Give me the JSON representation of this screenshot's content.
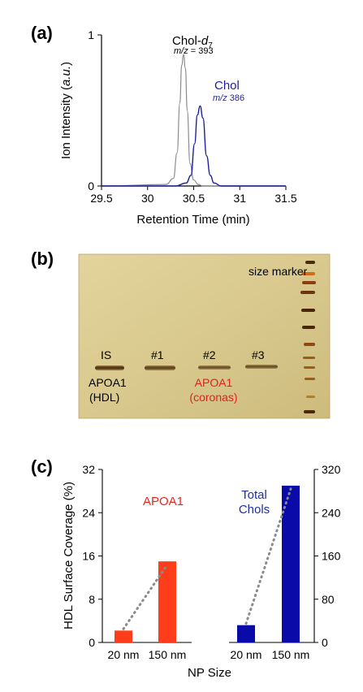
{
  "panels": {
    "a": "(a)",
    "b": "(b)",
    "c": "(c)"
  },
  "chart_data": [
    {
      "type": "line",
      "panel": "(a)",
      "xlabel": "Retention Time (min)",
      "ylabel_main": "Ion Intensity (",
      "ylabel_unit": "a.u.",
      "ylabel_close": ")",
      "x_ticks": [
        "29.5",
        "30",
        "30.5",
        "31",
        "31.5"
      ],
      "x_tick_values": [
        29.5,
        30.0,
        30.5,
        31.0,
        31.5
      ],
      "y_ticks": [
        "0",
        "1"
      ],
      "y_tick_values": [
        0,
        1
      ],
      "xlim": [
        29.5,
        31.5
      ],
      "ylim": [
        0,
        1
      ],
      "series": [
        {
          "name": "Chol-d7",
          "label_main": "Chol-",
          "label_italic": "d",
          "label_sub": "7",
          "mz_label": "m/z",
          "mz_value": " = 393",
          "color": "#8c8c8c",
          "x": [
            29.5,
            30.2,
            30.28,
            30.32,
            30.35,
            30.37,
            30.39,
            30.41,
            30.43,
            30.46,
            30.5,
            30.55,
            30.6,
            31.5
          ],
          "y": [
            0,
            0.01,
            0.05,
            0.22,
            0.55,
            0.8,
            0.87,
            0.78,
            0.5,
            0.15,
            0.04,
            0.01,
            0,
            0
          ]
        },
        {
          "name": "Chol",
          "label_main": "Chol",
          "mz_label": "m/z",
          "mz_value": " 386",
          "color": "#1f1f9e",
          "x": [
            29.5,
            30.3,
            30.42,
            30.47,
            30.51,
            30.54,
            30.57,
            30.6,
            30.64,
            30.68,
            30.72,
            30.8,
            31.5
          ],
          "y": [
            0,
            0,
            0.02,
            0.07,
            0.28,
            0.47,
            0.53,
            0.45,
            0.2,
            0.07,
            0.02,
            0,
            0
          ]
        }
      ]
    },
    {
      "type": "bar",
      "panel": "(c) left",
      "categories": [
        "20 nm",
        "150 nm"
      ],
      "values": [
        2.2,
        15.0
      ],
      "ylim": [
        0,
        32
      ],
      "y_ticks": [
        "0",
        "8",
        "16",
        "24",
        "32"
      ],
      "y_tick_values": [
        0,
        8,
        16,
        24,
        32
      ],
      "ylabel": "HDL Surface Coverage (%)",
      "legend": "APOA1",
      "color": "#ff3d1a",
      "legend_color": "#e8261f",
      "trend_line": "dotted"
    },
    {
      "type": "bar",
      "panel": "(c) right",
      "categories": [
        "20 nm",
        "150 nm"
      ],
      "values": [
        32,
        290
      ],
      "ylim": [
        0,
        320
      ],
      "y_ticks": [
        "0",
        "80",
        "160",
        "240",
        "320"
      ],
      "y_tick_values": [
        0,
        80,
        160,
        240,
        320
      ],
      "legend_line1": "Total",
      "legend_line2": "Chols",
      "color": "#0a0aa8",
      "legend_color": "#1f2fa0",
      "trend_line": "dotted"
    }
  ],
  "shared_xlabel": "NP Size",
  "gel": {
    "lane_labels": [
      "IS",
      "#1",
      "#2",
      "#3"
    ],
    "size_marker": "size marker",
    "hdl_line1": "APOA1",
    "hdl_line2": "(HDL)",
    "corona_line1": "APOA1",
    "corona_line2": "(coronas)",
    "background": "#d9c98e",
    "band_color": "#5a3a12",
    "corona_text_color": "#e02020"
  }
}
